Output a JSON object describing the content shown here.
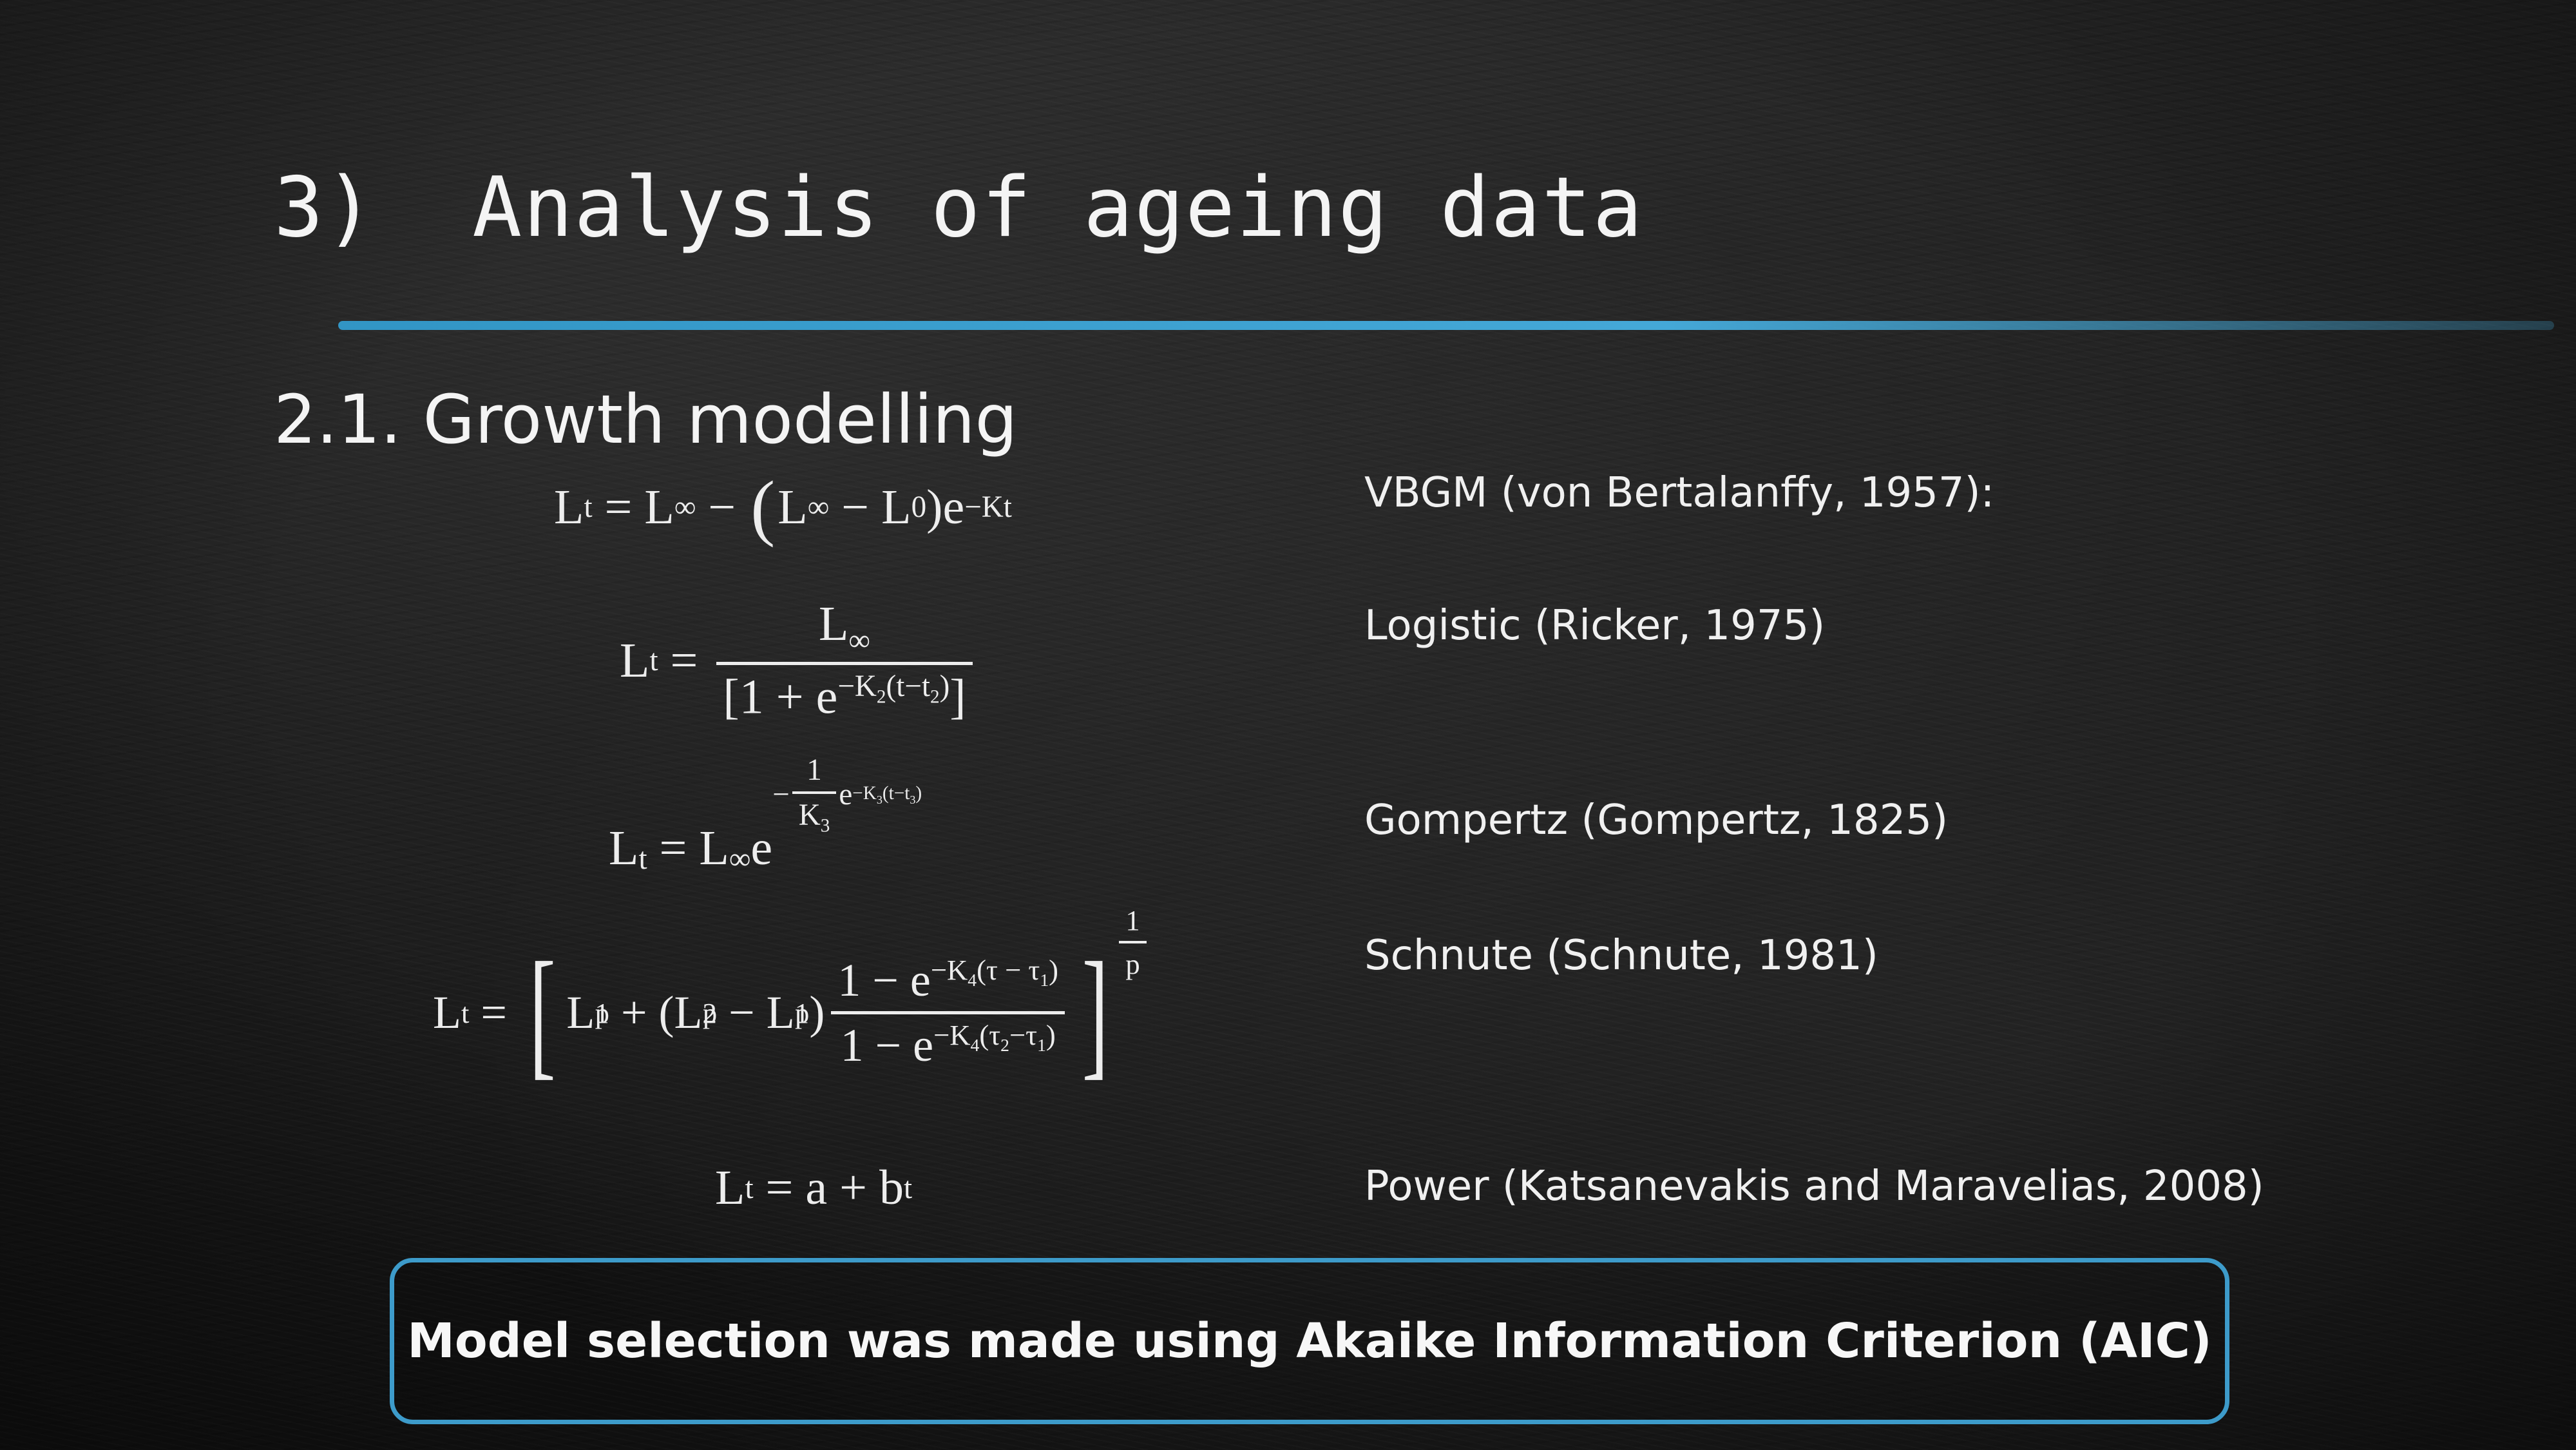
{
  "title": {
    "number": "3)",
    "text": "Analysis of ageing data"
  },
  "section": {
    "heading": "2.1. Growth modelling"
  },
  "models": [
    {
      "label": "VBGM (von Bertalanffy, 1957):",
      "formula": "L_t = L_∞ − (L_∞ − L_0)e^(−Kt)"
    },
    {
      "label": "Logistic (Ricker, 1975)",
      "formula": "L_t = L_∞ / [1 + e^(−K_2(t−t_2))]"
    },
    {
      "label": "Gompertz (Gompertz, 1825)",
      "formula": "L_t = L_∞ e^(−(1/K_3) e^(−K_3(t−t_3)))"
    },
    {
      "label": "Schnute (Schnute, 1981)",
      "formula": "L_t = [L_1^p + (L_2^p − L_1^p)(1 − e^(−K_4(τ−τ_1)))/(1 − e^(−K_4(τ_2−τ_1)))]^(1/p)"
    },
    {
      "label": "Power (Katsanevakis and Maravelias, 2008)",
      "formula": "L_t = a + b^t"
    }
  ],
  "callout": {
    "text": "Model selection was made using Akaike Information Criterion (AIC)"
  },
  "colors": {
    "accent": "#3d9bca",
    "background": "#1b1b1b",
    "text": "#f2f2f2"
  }
}
